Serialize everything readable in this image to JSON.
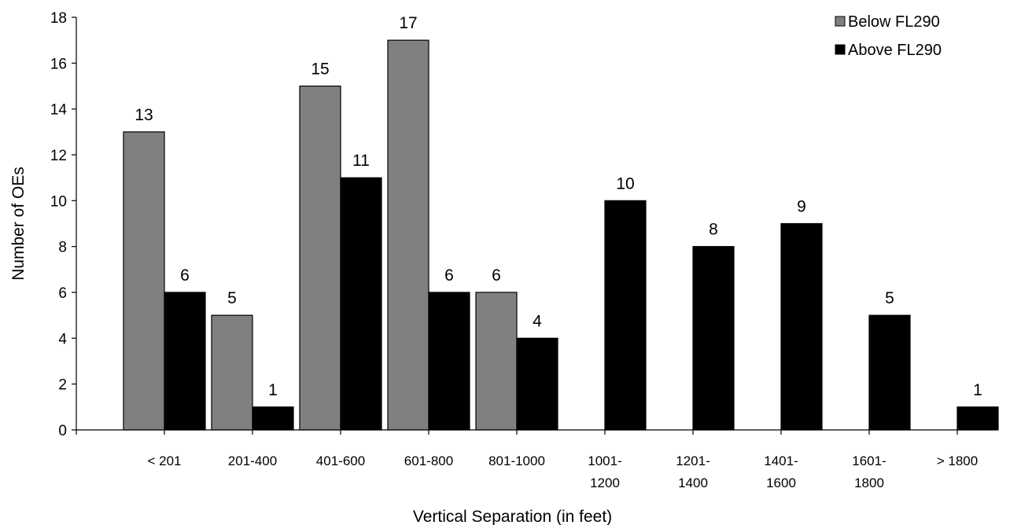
{
  "chart_data": {
    "type": "bar",
    "title": "",
    "xlabel": "Vertical Separation (in feet)",
    "ylabel": "Number of OEs",
    "ylim": [
      0,
      18
    ],
    "yticks": [
      0,
      2,
      4,
      6,
      8,
      10,
      12,
      14,
      16,
      18
    ],
    "grid": false,
    "legend_position": "top-right",
    "categories": [
      [
        "< 201"
      ],
      [
        "201-400"
      ],
      [
        "401-600"
      ],
      [
        "601-800"
      ],
      [
        "801-1000"
      ],
      [
        "1001-",
        "1200"
      ],
      [
        "1201-",
        "1400"
      ],
      [
        "1401-",
        "1600"
      ],
      [
        "1601-",
        "1800"
      ],
      [
        "> 1800"
      ]
    ],
    "series": [
      {
        "name": "Below FL290",
        "color": "#808080",
        "values": [
          13,
          5,
          15,
          17,
          6,
          null,
          null,
          null,
          null,
          null
        ]
      },
      {
        "name": "Above FL290",
        "color": "#000000",
        "values": [
          6,
          1,
          11,
          6,
          4,
          10,
          8,
          9,
          5,
          1
        ]
      }
    ]
  }
}
